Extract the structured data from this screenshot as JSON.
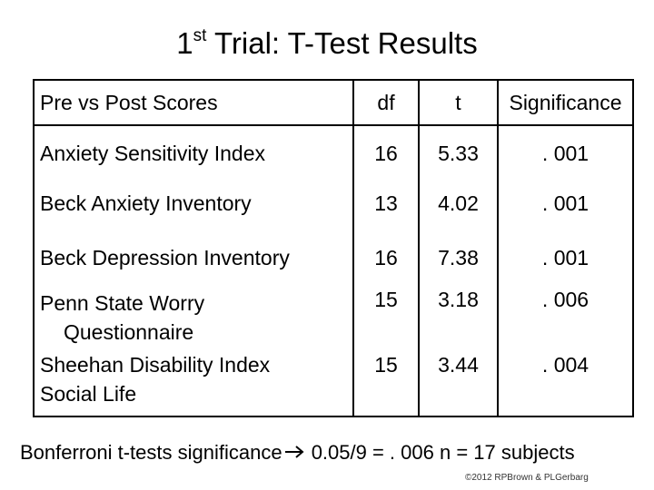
{
  "title": {
    "main_prefix": "1",
    "superscript": "st",
    "main_suffix": " Trial: T-Test Results"
  },
  "table": {
    "headers": [
      "Pre vs Post Scores",
      "df",
      "t",
      "Significance"
    ],
    "rows": [
      {
        "name": "Anxiety Sensitivity Index",
        "name2": "",
        "df": "16",
        "t": "5.33",
        "sig": ". 001"
      },
      {
        "name": "Beck Anxiety Inventory",
        "name2": "",
        "df": "13",
        "t": "4.02",
        "sig": ". 001"
      },
      {
        "name": "Beck Depression Inventory",
        "name2": "",
        "df": "16",
        "t": "7.38",
        "sig": ". 001"
      },
      {
        "name": "Penn State Worry",
        "name2": "Questionnaire",
        "df": "15",
        "t": "3.18",
        "sig": ". 006"
      },
      {
        "name": "Sheehan Disability Index",
        "name2": "Social Life",
        "df": "15",
        "t": "3.44",
        "sig": ". 004"
      }
    ]
  },
  "footer": {
    "left": "Bonferroni t-tests significance",
    "right": " 0.05/9 = . 006  n = 17 subjects",
    "arrow_icon": "right-arrow-icon"
  },
  "copyright": "©2012 RPBrown & PLGerbarg"
}
